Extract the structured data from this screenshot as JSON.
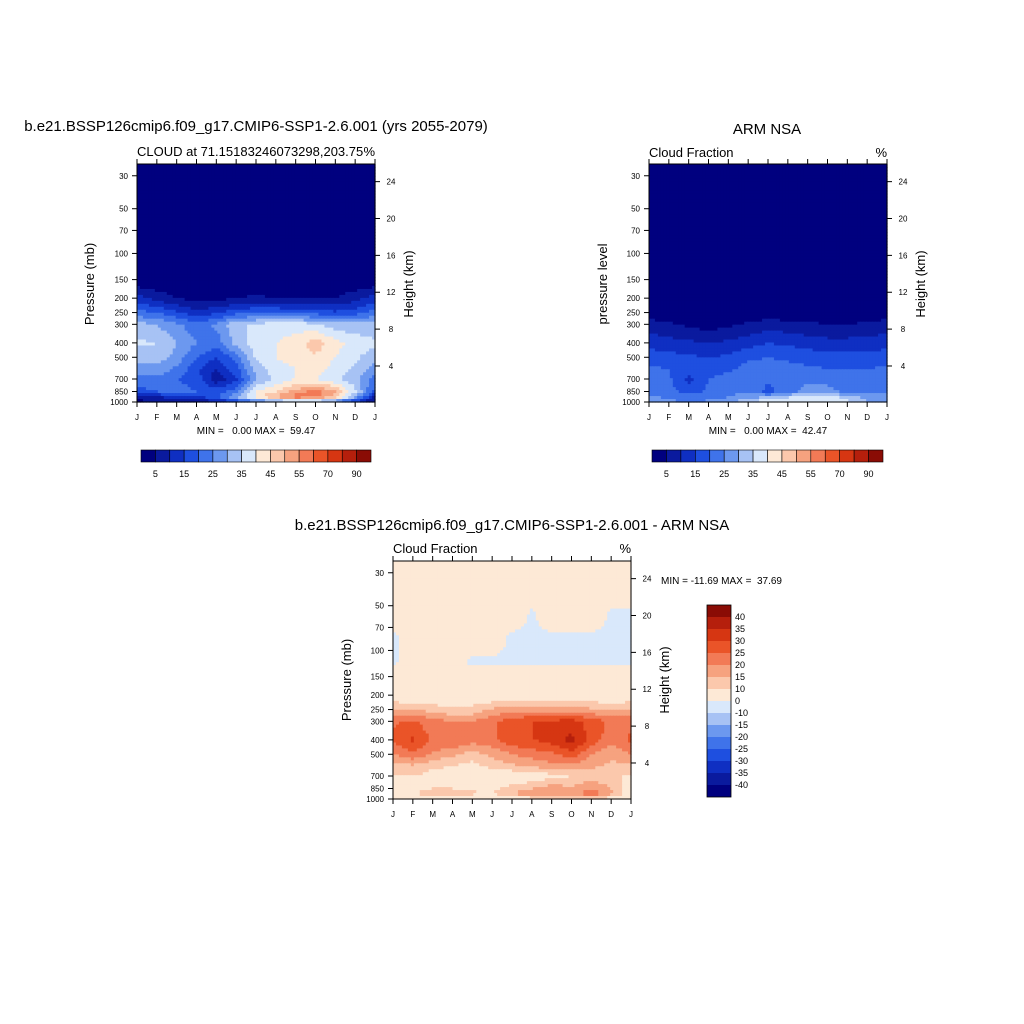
{
  "palettes": {
    "cloud": [
      "#00007f",
      "#0a1a9e",
      "#0f2fc2",
      "#1e4fe0",
      "#3f73ea",
      "#6c98ef",
      "#a7c2f4",
      "#d9e8fb",
      "#fde9d6",
      "#fbc8ac",
      "#f6a27f",
      "#f27a56",
      "#ea5428",
      "#d63612",
      "#b51f0c",
      "#8a0c05"
    ],
    "diff": [
      "#00007f",
      "#0a1a9e",
      "#0f2fc2",
      "#1e4fe0",
      "#3f73ea",
      "#6c98ef",
      "#a7c2f4",
      "#d9e8fb",
      "#fde9d6",
      "#fbc8ac",
      "#f6a27f",
      "#f27a56",
      "#ea5428",
      "#d63612",
      "#b51f0c",
      "#8a0c05"
    ]
  },
  "panels": {
    "model": {
      "title": "b.e21.BSSP126cmip6.f09_g17.CMIP6-SSP1-2.6.001 (yrs 2055-2079)",
      "subtitle_left": "CLOUD at 71.15183246073298,203.75",
      "subtitle_right": "%",
      "ylabel": "Pressure (mb)",
      "ylabel_right": "Height (km)",
      "stats": "MIN =   0.00 MAX =  59.47",
      "colorbar_ticks": [
        "5",
        "15",
        "25",
        "35",
        "45",
        "55",
        "70",
        "90"
      ]
    },
    "obs": {
      "title": "ARM NSA",
      "subtitle_left": "Cloud Fraction",
      "subtitle_right": "%",
      "ylabel": "pressure level",
      "ylabel_right": "Height (km)",
      "stats": "MIN =   0.00 MAX =  42.47",
      "colorbar_ticks": [
        "5",
        "15",
        "25",
        "35",
        "45",
        "55",
        "70",
        "90"
      ]
    },
    "diff": {
      "title": "b.e21.BSSP126cmip6.f09_g17.CMIP6-SSP1-2.6.001 - ARM NSA",
      "subtitle_left": "Cloud Fraction",
      "subtitle_right": "%",
      "ylabel": "Pressure (mb)",
      "ylabel_right": "Height (km)",
      "stats": "MIN = -11.69 MAX =  37.69",
      "colorbar_ticks": [
        "40",
        "35",
        "30",
        "25",
        "20",
        "15",
        "10",
        "0",
        "-10",
        "-15",
        "-20",
        "-25",
        "-30",
        "-35",
        "-40"
      ]
    }
  },
  "chart_data": [
    {
      "type": "heatmap",
      "title": "b.e21.BSSP126cmip6.f09_g17.CMIP6-SSP1-2.6.001 (yrs 2055-2079)",
      "subtitle": "CLOUD at 71.15183246073298,203.75",
      "units": "%",
      "x_tick_labels": [
        "J",
        "F",
        "M",
        "A",
        "M",
        "J",
        "J",
        "A",
        "S",
        "O",
        "N",
        "D",
        "J"
      ],
      "y_left_ticks": [
        30,
        50,
        70,
        100,
        150,
        200,
        250,
        300,
        400,
        500,
        700,
        850,
        1000
      ],
      "y_right_ticks": [
        24,
        20,
        16,
        12,
        8,
        4
      ],
      "ylim": [
        1000,
        25
      ],
      "levels": [
        0,
        5,
        10,
        15,
        20,
        25,
        30,
        35,
        40,
        45,
        50,
        55,
        60,
        70,
        80,
        90
      ],
      "pressure": [
        30,
        100,
        150,
        200,
        250,
        300,
        400,
        500,
        600,
        700,
        850,
        925,
        1000
      ],
      "z": [
        [
          0,
          0,
          0,
          0,
          0,
          0,
          0,
          0,
          0,
          0,
          0,
          0,
          0
        ],
        [
          0,
          0,
          0,
          0,
          0,
          0,
          0,
          0,
          0,
          0,
          0,
          0,
          0
        ],
        [
          1,
          1,
          1,
          1,
          1,
          1,
          1,
          1,
          1,
          1,
          1,
          1,
          1
        ],
        [
          12,
          8,
          5,
          3,
          3,
          5,
          6,
          5,
          5,
          5,
          5,
          8,
          12
        ],
        [
          22,
          20,
          16,
          12,
          14,
          18,
          20,
          20,
          18,
          18,
          16,
          18,
          22
        ],
        [
          32,
          30,
          26,
          22,
          26,
          34,
          36,
          38,
          38,
          36,
          32,
          32,
          32
        ],
        [
          36,
          35,
          30,
          25,
          22,
          32,
          38,
          40,
          42,
          48,
          42,
          38,
          36
        ],
        [
          32,
          33,
          28,
          20,
          15,
          22,
          36,
          40,
          42,
          44,
          40,
          36,
          32
        ],
        [
          28,
          28,
          24,
          16,
          10,
          18,
          32,
          38,
          40,
          42,
          38,
          34,
          28
        ],
        [
          22,
          24,
          20,
          18,
          6,
          14,
          30,
          36,
          40,
          40,
          36,
          32,
          22
        ],
        [
          18,
          20,
          22,
          20,
          18,
          22,
          40,
          45,
          52,
          58,
          50,
          36,
          18
        ],
        [
          8,
          10,
          12,
          14,
          18,
          30,
          42,
          52,
          59,
          56,
          48,
          30,
          8
        ],
        [
          3,
          4,
          5,
          6,
          8,
          15,
          20,
          25,
          30,
          30,
          22,
          12,
          3
        ]
      ],
      "min": 0.0,
      "max": 59.47
    },
    {
      "type": "heatmap",
      "title": "ARM NSA",
      "subtitle": "Cloud Fraction",
      "units": "%",
      "x_tick_labels": [
        "J",
        "F",
        "M",
        "A",
        "M",
        "J",
        "J",
        "A",
        "S",
        "O",
        "N",
        "D",
        "J"
      ],
      "y_left_ticks": [
        30,
        50,
        70,
        100,
        150,
        200,
        250,
        300,
        400,
        500,
        700,
        850,
        1000
      ],
      "y_right_ticks": [
        24,
        20,
        16,
        12,
        8,
        4
      ],
      "ylim": [
        1000,
        25
      ],
      "levels": [
        0,
        5,
        10,
        15,
        20,
        25,
        30,
        35,
        40,
        45,
        50,
        55,
        60,
        70,
        80,
        90
      ],
      "pressure": [
        30,
        100,
        150,
        200,
        250,
        300,
        400,
        500,
        600,
        700,
        850,
        925,
        1000
      ],
      "z": [
        [
          0,
          0,
          0,
          0,
          0,
          0,
          0,
          0,
          0,
          0,
          0,
          0,
          0
        ],
        [
          0,
          0,
          0,
          0,
          0,
          0,
          0,
          0,
          0,
          0,
          0,
          0,
          0
        ],
        [
          0,
          0,
          0,
          0,
          0,
          0,
          0,
          0,
          0,
          0,
          0,
          0,
          0
        ],
        [
          0,
          0,
          0,
          0,
          0,
          0,
          0,
          0,
          0,
          0,
          0,
          0,
          0
        ],
        [
          1,
          1,
          1,
          1,
          1,
          1,
          1,
          1,
          1,
          1,
          1,
          1,
          1
        ],
        [
          8,
          6,
          4,
          3,
          4,
          6,
          8,
          7,
          6,
          5,
          5,
          6,
          8
        ],
        [
          13,
          12,
          11,
          10,
          11,
          13,
          15,
          14,
          13,
          12,
          12,
          12,
          13
        ],
        [
          18,
          17,
          16,
          15,
          16,
          19,
          20,
          19,
          18,
          17,
          17,
          17,
          18
        ],
        [
          21,
          20,
          19,
          18,
          19,
          22,
          23,
          22,
          21,
          20,
          20,
          20,
          21
        ],
        [
          23,
          21,
          13,
          20,
          22,
          24,
          21,
          23,
          24,
          24,
          23,
          22,
          23
        ],
        [
          24,
          22,
          18,
          21,
          23,
          25,
          18,
          23,
          27,
          26,
          24,
          23,
          24
        ],
        [
          26,
          24,
          23,
          23,
          25,
          28,
          30,
          34,
          38,
          37,
          33,
          28,
          26
        ],
        [
          28,
          26,
          25,
          26,
          28,
          35,
          40,
          42,
          40,
          40,
          36,
          30,
          28
        ]
      ],
      "min": 0.0,
      "max": 42.47
    },
    {
      "type": "heatmap",
      "title": "b.e21.BSSP126cmip6.f09_g17.CMIP6-SSP1-2.6.001 - ARM NSA",
      "subtitle": "Cloud Fraction",
      "units": "%",
      "x_tick_labels": [
        "J",
        "F",
        "M",
        "A",
        "M",
        "J",
        "J",
        "A",
        "S",
        "O",
        "N",
        "D",
        "J"
      ],
      "y_left_ticks": [
        30,
        50,
        70,
        100,
        150,
        200,
        250,
        300,
        400,
        500,
        700,
        850,
        1000
      ],
      "y_right_ticks": [
        24,
        20,
        16,
        12,
        8,
        4
      ],
      "ylim": [
        1000,
        25
      ],
      "levels": [
        -45,
        -40,
        -35,
        -30,
        -25,
        -20,
        -15,
        -10,
        0,
        10,
        15,
        20,
        25,
        30,
        35,
        40,
        45
      ],
      "pressure": [
        30,
        60,
        80,
        120,
        150,
        200,
        250,
        300,
        400,
        500,
        600,
        700,
        850,
        925,
        1000
      ],
      "z": [
        [
          3,
          3,
          3,
          3,
          3,
          3,
          3,
          3,
          3,
          3,
          3,
          3,
          3
        ],
        [
          3,
          3,
          3,
          3,
          3,
          3,
          3,
          -1,
          3,
          3,
          3,
          -1,
          -1
        ],
        [
          -1,
          3,
          3,
          3,
          3,
          3,
          -1,
          -1,
          -1,
          -1,
          -1,
          -1,
          -1
        ],
        [
          -1,
          3,
          3,
          3,
          -1,
          -1,
          -1,
          -1,
          -1,
          -1,
          -1,
          -1,
          -1
        ],
        [
          3,
          3,
          3,
          3,
          3,
          3,
          3,
          3,
          3,
          3,
          3,
          3,
          3
        ],
        [
          5,
          5,
          5,
          5,
          5,
          5,
          5,
          5,
          5,
          5,
          5,
          5,
          5
        ],
        [
          16,
          15,
          13,
          11,
          12,
          16,
          18,
          18,
          18,
          18,
          16,
          15,
          16
        ],
        [
          24,
          26,
          22,
          20,
          20,
          24,
          28,
          30,
          31,
          32,
          28,
          24,
          24
        ],
        [
          26,
          31,
          24,
          25,
          22,
          24,
          28,
          30,
          32,
          37,
          28,
          22,
          26
        ],
        [
          20,
          24,
          19,
          16,
          13,
          16,
          20,
          22,
          24,
          28,
          20,
          16,
          20
        ],
        [
          13,
          14,
          11,
          10,
          8,
          12,
          14,
          16,
          18,
          18,
          16,
          14,
          13
        ],
        [
          9,
          10,
          8,
          7,
          6,
          5,
          5,
          6,
          8,
          10,
          12,
          11,
          9
        ],
        [
          7,
          8,
          10,
          10,
          9,
          9,
          12,
          15,
          18,
          16,
          20,
          15,
          7
        ],
        [
          6,
          10,
          13,
          12,
          11,
          10,
          15,
          20,
          21,
          16,
          25,
          16,
          6
        ],
        [
          2,
          3,
          3,
          3,
          2,
          -2,
          3,
          6,
          10,
          8,
          10,
          6,
          2
        ]
      ],
      "min": -11.69,
      "max": 37.69
    }
  ]
}
